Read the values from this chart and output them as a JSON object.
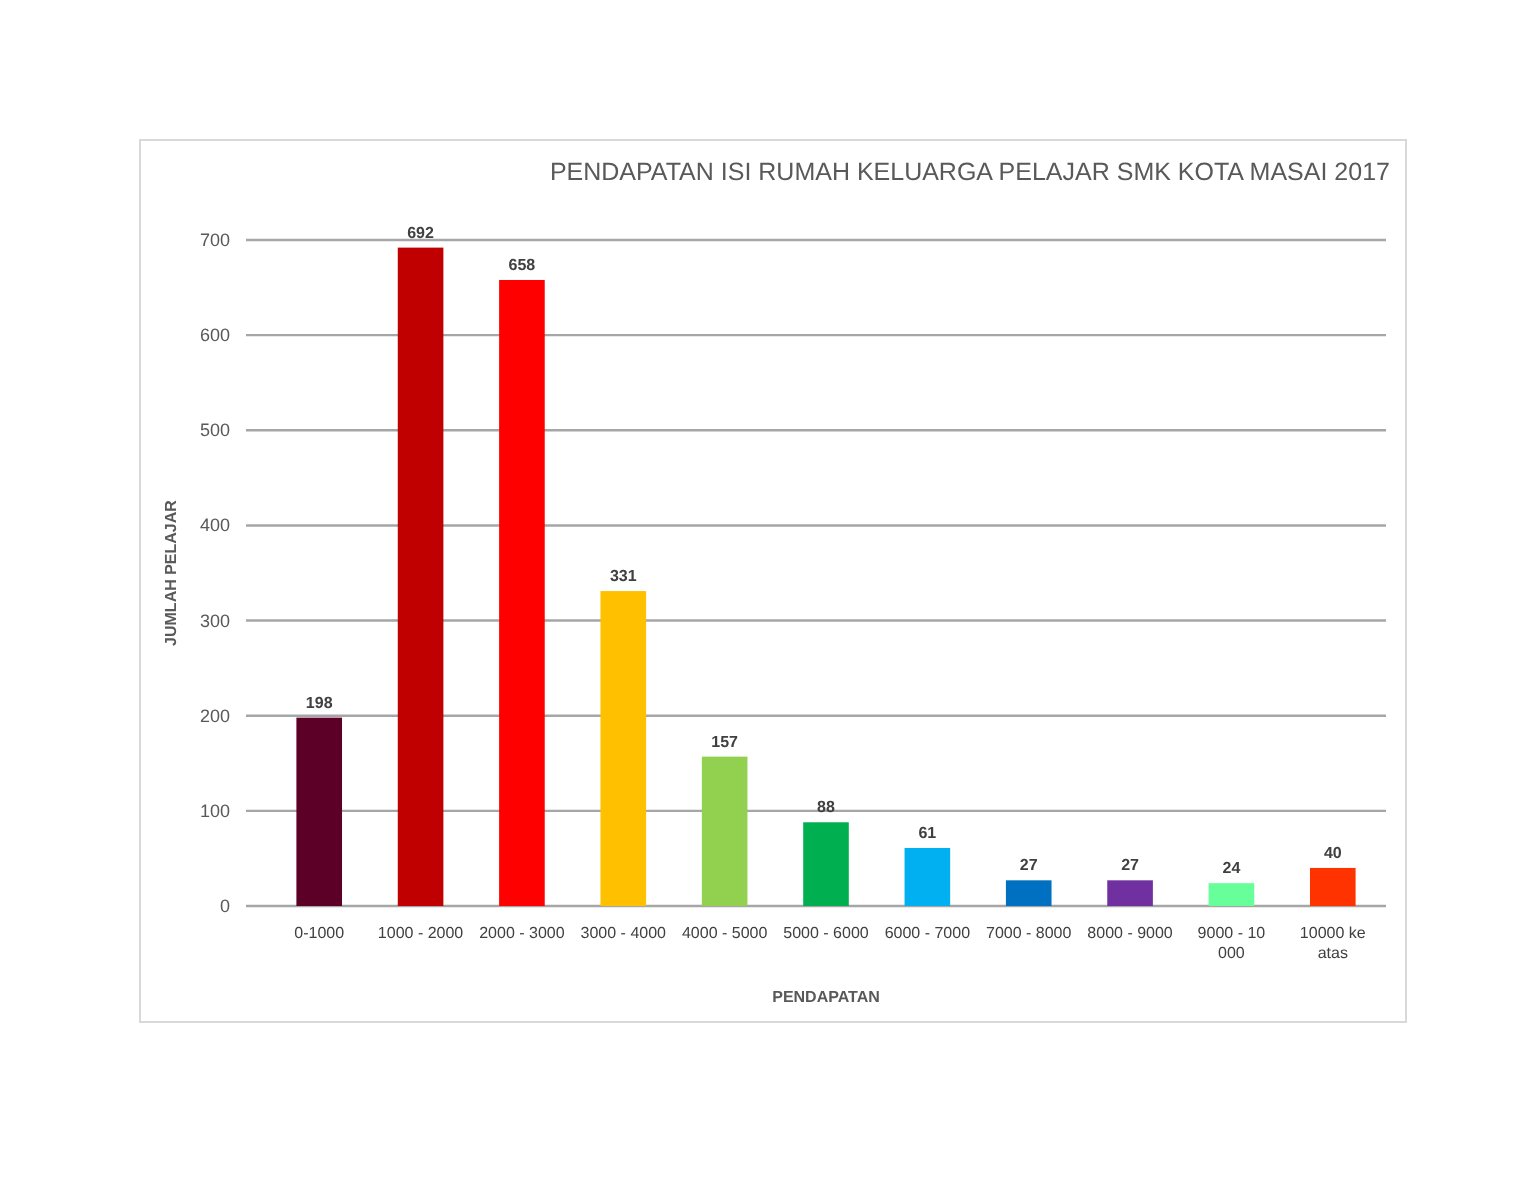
{
  "chart_data": {
    "type": "bar",
    "title": "PENDAPATAN ISI RUMAH KELUARGA PELAJAR SMK KOTA MASAI 2017",
    "xlabel": "PENDAPATAN",
    "ylabel": "JUMLAH PELAJAR",
    "categories": [
      "0-1000",
      "1000 - 2000",
      "2000 - 3000",
      "3000 - 4000",
      "4000 - 5000",
      "5000 - 6000",
      "6000 - 7000",
      "7000 - 8000",
      "8000 - 9000",
      "9000 - 10 000",
      "10000 ke atas"
    ],
    "values": [
      198,
      692,
      658,
      331,
      157,
      88,
      61,
      27,
      27,
      24,
      40
    ],
    "colors": [
      "#5c0028",
      "#c00000",
      "#ff0000",
      "#ffc000",
      "#92d050",
      "#00b050",
      "#00b0f0",
      "#0070c0",
      "#7030a0",
      "#66ff99",
      "#ff3300"
    ],
    "ylim": [
      0,
      700
    ],
    "yticks": [
      0,
      100,
      200,
      300,
      400,
      500,
      600,
      700
    ],
    "grid": true,
    "data_labels": true
  }
}
